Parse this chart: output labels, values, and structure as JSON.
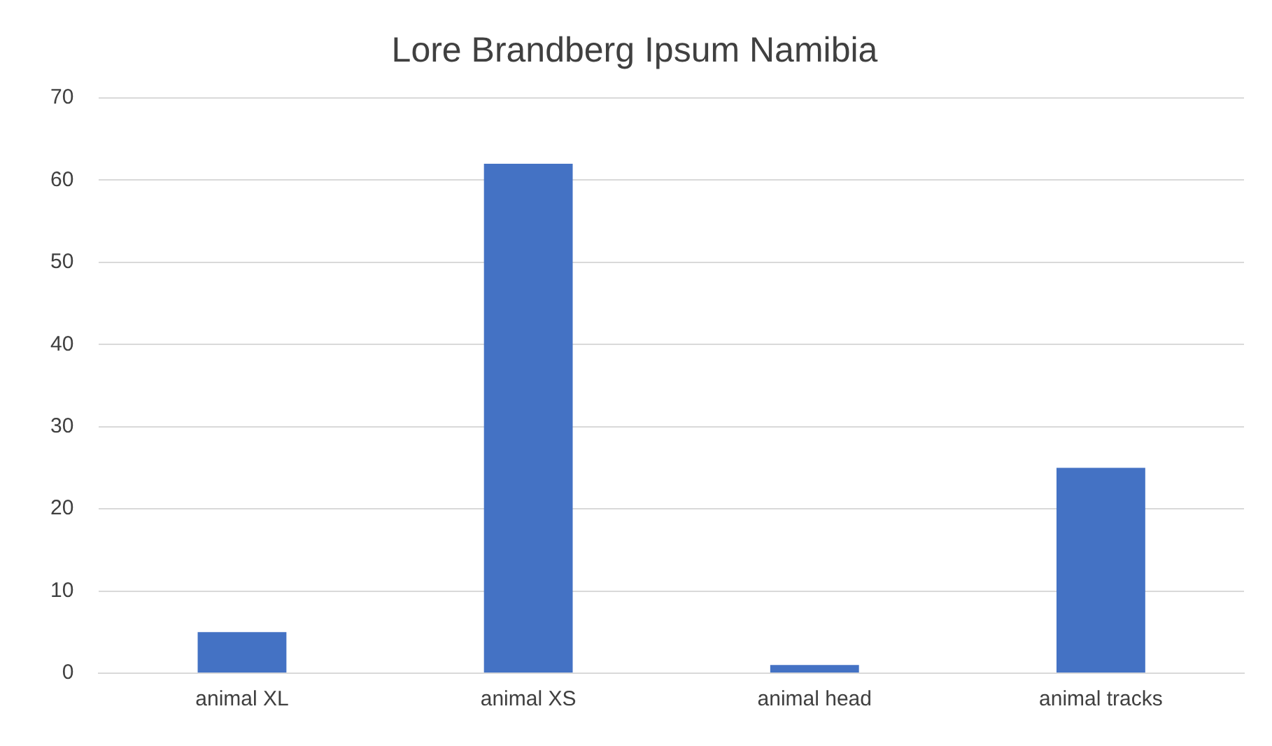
{
  "chart_data": {
    "type": "bar",
    "title": "Lore Brandberg Ipsum Namibia",
    "categories": [
      "animal XL",
      "animal XS",
      "animal head",
      "animal tracks"
    ],
    "values": [
      5,
      62,
      1,
      25
    ],
    "color": "#4472c4",
    "ylim": [
      0,
      70
    ],
    "yticks": [
      0,
      10,
      20,
      30,
      40,
      50,
      60,
      70
    ],
    "grid": "y"
  }
}
